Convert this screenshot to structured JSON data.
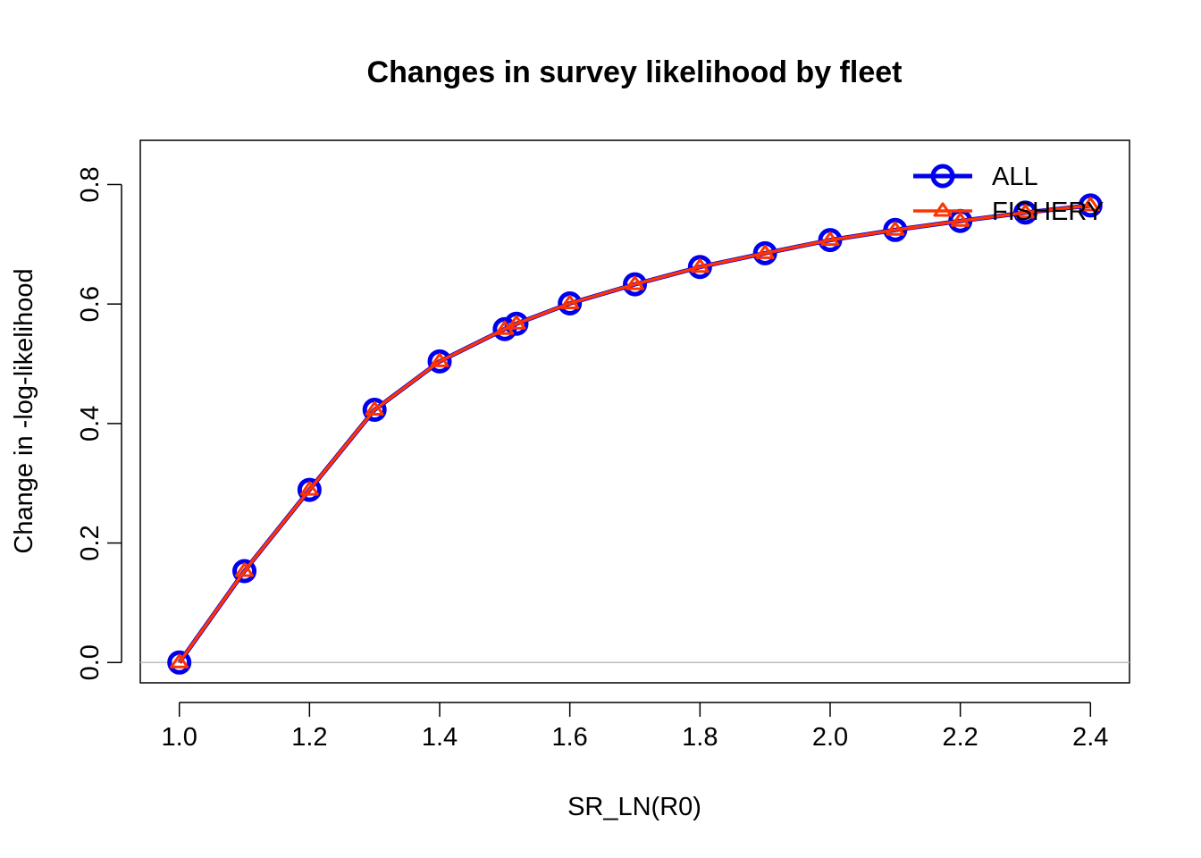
{
  "chart_data": {
    "type": "line",
    "title": "Changes in survey likelihood by fleet",
    "xlabel": "SR_LN(R0)",
    "ylabel": "Change in -log-likelihood",
    "xlim": [
      0.94,
      2.46
    ],
    "ylim": [
      -0.034,
      0.874
    ],
    "x_ticks": [
      "1.0",
      "1.2",
      "1.4",
      "1.6",
      "1.8",
      "2.0",
      "2.2",
      "2.4"
    ],
    "y_ticks": [
      "0.0",
      "0.2",
      "0.4",
      "0.6",
      "0.8"
    ],
    "reference_line_y": 0,
    "grid": false,
    "legend_position": "top-right",
    "x": [
      1.0,
      1.1,
      1.2,
      1.3,
      1.4,
      1.5,
      1.518,
      1.6,
      1.7,
      1.8,
      1.9,
      2.0,
      2.1,
      2.2,
      2.3,
      2.4
    ],
    "series": [
      {
        "name": "ALL",
        "color": "#0000ee",
        "marker": "circle",
        "values": [
          0.0,
          0.153,
          0.289,
          0.423,
          0.504,
          0.558,
          0.567,
          0.601,
          0.633,
          0.662,
          0.685,
          0.707,
          0.724,
          0.739,
          0.753,
          0.765
        ]
      },
      {
        "name": "FISHERY",
        "color": "#ff3300",
        "marker": "triangle",
        "values": [
          0.0,
          0.153,
          0.289,
          0.423,
          0.504,
          0.558,
          0.567,
          0.601,
          0.633,
          0.662,
          0.685,
          0.707,
          0.724,
          0.739,
          0.753,
          0.765
        ]
      }
    ]
  }
}
